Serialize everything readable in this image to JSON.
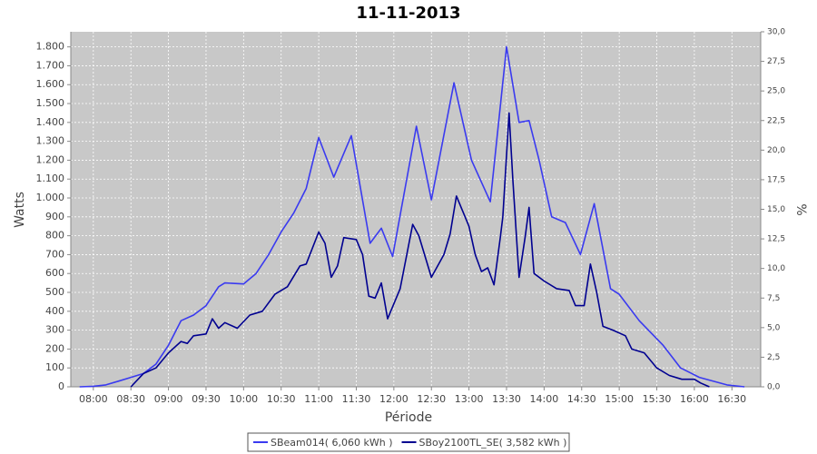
{
  "chart_data": {
    "type": "line",
    "title": "11-11-2013",
    "xlabel": "Période",
    "ylabel": "Watts",
    "y2label": "%",
    "xlim": [
      462,
      1013
    ],
    "ylim": [
      0,
      1880
    ],
    "y2lim": [
      0,
      30
    ],
    "xticks": [
      {
        "value": 480,
        "label": "08:00"
      },
      {
        "value": 510,
        "label": "08:30"
      },
      {
        "value": 540,
        "label": "09:00"
      },
      {
        "value": 570,
        "label": "09:30"
      },
      {
        "value": 600,
        "label": "10:00"
      },
      {
        "value": 630,
        "label": "10:30"
      },
      {
        "value": 660,
        "label": "11:00"
      },
      {
        "value": 690,
        "label": "11:30"
      },
      {
        "value": 720,
        "label": "12:00"
      },
      {
        "value": 750,
        "label": "12:30"
      },
      {
        "value": 780,
        "label": "13:00"
      },
      {
        "value": 810,
        "label": "13:30"
      },
      {
        "value": 840,
        "label": "14:00"
      },
      {
        "value": 870,
        "label": "14:30"
      },
      {
        "value": 900,
        "label": "15:00"
      },
      {
        "value": 930,
        "label": "15:30"
      },
      {
        "value": 960,
        "label": "16:00"
      },
      {
        "value": 990,
        "label": "16:30"
      }
    ],
    "yticks": [
      0,
      100,
      200,
      300,
      400,
      500,
      600,
      700,
      800,
      900,
      {
        "value": 1000,
        "label": "1.000"
      },
      {
        "value": 1100,
        "label": "1.100"
      },
      {
        "value": 1200,
        "label": "1.200"
      },
      {
        "value": 1300,
        "label": "1.300"
      },
      {
        "value": 1400,
        "label": "1.400"
      },
      {
        "value": 1500,
        "label": "1.500"
      },
      {
        "value": 1600,
        "label": "1.600"
      },
      {
        "value": 1700,
        "label": "1.700"
      },
      {
        "value": 1800,
        "label": "1.800"
      }
    ],
    "y2ticks": [
      {
        "value": 0,
        "label": "0,0"
      },
      {
        "value": 2.5,
        "label": "2,5"
      },
      {
        "value": 5,
        "label": "5,0"
      },
      {
        "value": 7.5,
        "label": "7,5"
      },
      {
        "value": 10,
        "label": "10,0"
      },
      {
        "value": 12.5,
        "label": "12,5"
      },
      {
        "value": 15,
        "label": "15,0"
      },
      {
        "value": 17.5,
        "label": "17,5"
      },
      {
        "value": 20,
        "label": "20,0"
      },
      {
        "value": 22.5,
        "label": "22,5"
      },
      {
        "value": 25,
        "label": "25,0"
      },
      {
        "value": 27.5,
        "label": "27,5"
      },
      {
        "value": 30,
        "label": "30,0"
      }
    ],
    "grid": true,
    "series": [
      {
        "name": "SBeam014( 6,060 kWh )",
        "color": "#3a3af0",
        "x": [
          469,
          480,
          490,
          500,
          510,
          520,
          530,
          540,
          550,
          560,
          570,
          580,
          585,
          600,
          610,
          620,
          630,
          640,
          650,
          660,
          672,
          686,
          701,
          710,
          719,
          738,
          750,
          768,
          782,
          797,
          810,
          820,
          828,
          836,
          846,
          857,
          869,
          880,
          893,
          900,
          916,
          935,
          949,
          964,
          986,
          1000
        ],
        "values": [
          0,
          3,
          10,
          30,
          50,
          70,
          120,
          220,
          350,
          380,
          430,
          530,
          550,
          545,
          600,
          700,
          820,
          920,
          1050,
          1320,
          1110,
          1330,
          760,
          840,
          690,
          1380,
          990,
          1610,
          1200,
          980,
          1800,
          1400,
          1410,
          1200,
          900,
          870,
          700,
          970,
          520,
          490,
          350,
          220,
          100,
          50,
          10,
          0
        ]
      },
      {
        "name": "SBoy2100TL_SE( 3,582 kWh )",
        "color": "#000090",
        "x": [
          510,
          520,
          530,
          540,
          550,
          555,
          560,
          570,
          575,
          580,
          585,
          595,
          605,
          615,
          625,
          635,
          645,
          650,
          660,
          665,
          670,
          675,
          680,
          690,
          695,
          700,
          705,
          710,
          715,
          725,
          735,
          740,
          750,
          760,
          765,
          770,
          780,
          785,
          790,
          795,
          800,
          805,
          807,
          812,
          815,
          820,
          825,
          828,
          832,
          840,
          850,
          860,
          865,
          872,
          877,
          882,
          887,
          895,
          905,
          910,
          920,
          930,
          940,
          950,
          960,
          965,
          972
        ],
        "values": [
          0,
          70,
          100,
          180,
          240,
          230,
          270,
          280,
          360,
          310,
          340,
          310,
          380,
          400,
          490,
          530,
          640,
          650,
          820,
          760,
          580,
          640,
          790,
          780,
          700,
          480,
          470,
          550,
          360,
          520,
          860,
          800,
          580,
          700,
          810,
          1010,
          850,
          700,
          610,
          630,
          540,
          790,
          900,
          1450,
          1100,
          580,
          800,
          950,
          600,
          560,
          520,
          510,
          430,
          430,
          650,
          500,
          320,
          300,
          270,
          200,
          180,
          100,
          60,
          40,
          40,
          20,
          0
        ]
      }
    ]
  }
}
